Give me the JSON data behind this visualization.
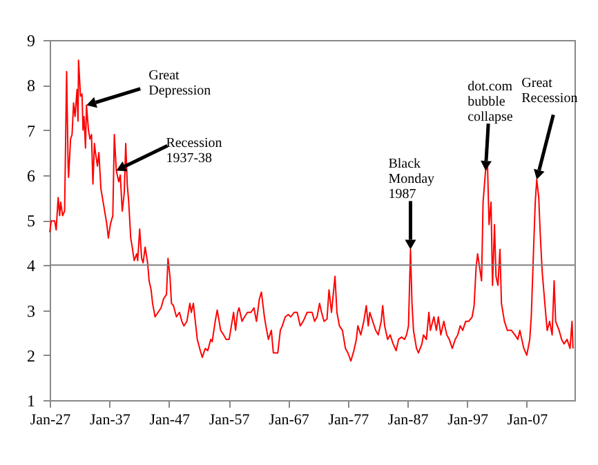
{
  "chart_data": {
    "type": "line",
    "xlim": [
      "1927-01",
      "2015-01"
    ],
    "ylim": [
      1,
      9
    ],
    "xticks": [
      {
        "value": "1927-01",
        "label": "Jan-27"
      },
      {
        "value": "1937-01",
        "label": "Jan-37"
      },
      {
        "value": "1947-01",
        "label": "Jan-47"
      },
      {
        "value": "1957-01",
        "label": "Jan-57"
      },
      {
        "value": "1967-01",
        "label": "Jan-67"
      },
      {
        "value": "1977-01",
        "label": "Jan-77"
      },
      {
        "value": "1987-01",
        "label": "Jan-87"
      },
      {
        "value": "1997-01",
        "label": "Jan-97"
      },
      {
        "value": "2007-01",
        "label": "Jan-07"
      }
    ],
    "yticks": [
      1,
      2,
      3,
      4,
      5,
      6,
      7,
      8,
      9
    ],
    "grid": false,
    "ref_lines": [
      {
        "axis": "y",
        "value": 4,
        "color": "#808080"
      }
    ],
    "annotations": [
      {
        "text": "Great Depression",
        "x": "1933-03",
        "y": 7.55
      },
      {
        "text": "Recession 1937-38",
        "x": "1938-03",
        "y": 6.1
      },
      {
        "text": "Black Monday 1987",
        "x": "1987-07",
        "y": 4.35
      },
      {
        "text": "dot.com bubble collapse",
        "x": "2000-02",
        "y": 6.1
      },
      {
        "text": "Great Recession",
        "x": "2008-09",
        "y": 5.9
      }
    ],
    "series": [
      {
        "color": "#ff0000",
        "x": [
          "1927-01",
          "1927-04",
          "1927-11",
          "1928-02",
          "1928-06",
          "1928-09",
          "1928-11",
          "1929-03",
          "1929-07",
          "1929-11",
          "1930-02",
          "1930-03",
          "1930-07",
          "1930-10",
          "1931-01",
          "1931-04",
          "1931-08",
          "1931-10",
          "1931-11",
          "1932-03",
          "1932-06",
          "1932-08",
          "1932-10",
          "1933-01",
          "1933-03",
          "1933-07",
          "1933-10",
          "1934-01",
          "1934-04",
          "1934-07",
          "1934-09",
          "1935-01",
          "1935-04",
          "1935-08",
          "1936-02",
          "1936-08",
          "1936-11",
          "1937-03",
          "1937-08",
          "1937-11",
          "1938-03",
          "1938-08",
          "1938-11",
          "1939-03",
          "1939-07",
          "1939-10",
          "1940-01",
          "1940-04",
          "1940-08",
          "1940-11",
          "1941-03",
          "1941-08",
          "1941-10",
          "1942-02",
          "1942-06",
          "1942-09",
          "1943-01",
          "1943-06",
          "1943-09",
          "1944-01",
          "1944-04",
          "1944-09",
          "1945-03",
          "1945-09",
          "1946-02",
          "1946-08",
          "1946-11",
          "1947-03",
          "1947-06",
          "1947-10",
          "1948-04",
          "1948-10",
          "1949-03",
          "1949-07",
          "1950-01",
          "1950-07",
          "1950-10",
          "1951-02",
          "1951-06",
          "1951-10",
          "1952-04",
          "1952-08",
          "1953-02",
          "1953-07",
          "1954-01",
          "1954-04",
          "1954-10",
          "1955-02",
          "1955-06",
          "1955-09",
          "1956-03",
          "1956-08",
          "1957-02",
          "1957-08",
          "1957-11",
          "1958-03",
          "1958-07",
          "1958-10",
          "1959-04",
          "1959-09",
          "1960-03",
          "1960-10",
          "1961-04",
          "1961-09",
          "1962-03",
          "1962-07",
          "1963-01",
          "1963-04",
          "1963-09",
          "1964-03",
          "1964-07",
          "1965-04",
          "1965-09",
          "1966-01",
          "1966-07",
          "1967-01",
          "1967-06",
          "1968-01",
          "1968-07",
          "1969-01",
          "1969-07",
          "1969-11",
          "1970-03",
          "1971-01",
          "1971-06",
          "1971-11",
          "1972-04",
          "1972-08",
          "1973-01",
          "1973-07",
          "1973-11",
          "1974-04",
          "1974-08",
          "1974-11",
          "1975-03",
          "1975-08",
          "1976-02",
          "1976-08",
          "1977-01",
          "1977-07",
          "1978-01",
          "1978-06",
          "1978-09",
          "1979-03",
          "1979-09",
          "1980-02",
          "1980-06",
          "1980-09",
          "1981-03",
          "1981-09",
          "1982-02",
          "1982-08",
          "1982-11",
          "1983-03",
          "1983-09",
          "1984-02",
          "1984-08",
          "1985-02",
          "1985-07",
          "1986-01",
          "1986-07",
          "1986-11",
          "1987-03",
          "1987-07",
          "1987-10",
          "1988-01",
          "1988-07",
          "1988-11",
          "1989-06",
          "1989-09",
          "1990-03",
          "1990-08",
          "1990-11",
          "1991-06",
          "1991-11",
          "1992-03",
          "1992-08",
          "1993-02",
          "1993-08",
          "1994-01",
          "1994-07",
          "1995-01",
          "1995-06",
          "1995-11",
          "1996-04",
          "1996-10",
          "1997-04",
          "1997-11",
          "1998-03",
          "1998-07",
          "1998-10",
          "1999-02",
          "1999-06",
          "1999-09",
          "2000-02",
          "2000-06",
          "2000-09",
          "2001-01",
          "2001-04",
          "2001-08",
          "2001-11",
          "2002-03",
          "2002-07",
          "2002-10",
          "2003-04",
          "2003-10",
          "2004-06",
          "2005-01",
          "2005-07",
          "2005-11",
          "2006-03",
          "2006-07",
          "2007-01",
          "2007-07",
          "2007-10",
          "2008-02",
          "2008-06",
          "2008-09",
          "2009-01",
          "2009-04",
          "2009-08",
          "2010-02",
          "2010-06",
          "2010-11",
          "2011-04",
          "2011-08",
          "2011-11",
          "2012-06",
          "2012-11",
          "2013-04",
          "2013-10",
          "2014-04",
          "2014-08",
          "2014-10"
        ],
        "values": [
          4.73,
          4.98,
          4.98,
          4.78,
          5.5,
          5.1,
          5.4,
          5.1,
          5.2,
          8.3,
          6.2,
          5.95,
          6.8,
          6.9,
          7.6,
          7.3,
          7.9,
          7.2,
          8.55,
          7.75,
          7.8,
          7.0,
          7.3,
          6.6,
          7.55,
          7.0,
          6.8,
          6.9,
          5.8,
          6.7,
          6.5,
          6.2,
          6.5,
          5.7,
          5.3,
          4.9,
          4.6,
          4.9,
          5.1,
          6.9,
          6.1,
          5.85,
          6.0,
          5.2,
          5.6,
          6.7,
          5.8,
          5.4,
          4.6,
          4.4,
          4.1,
          4.25,
          4.1,
          4.8,
          4.15,
          4.05,
          4.4,
          4.05,
          3.65,
          3.45,
          3.15,
          2.85,
          2.95,
          3.05,
          3.25,
          3.35,
          4.15,
          3.75,
          3.15,
          3.1,
          2.85,
          2.95,
          2.75,
          2.65,
          2.75,
          3.15,
          2.95,
          3.15,
          2.75,
          2.35,
          2.1,
          1.95,
          2.15,
          2.1,
          2.35,
          2.3,
          2.75,
          3.0,
          2.75,
          2.55,
          2.45,
          2.35,
          2.35,
          2.75,
          2.95,
          2.55,
          2.95,
          3.05,
          2.75,
          2.85,
          2.95,
          2.95,
          3.05,
          2.75,
          3.25,
          3.4,
          2.85,
          2.65,
          2.35,
          2.55,
          2.05,
          2.05,
          2.55,
          2.65,
          2.85,
          2.9,
          2.85,
          2.95,
          2.95,
          2.65,
          2.75,
          2.85,
          2.95,
          2.95,
          2.75,
          2.85,
          3.15,
          2.95,
          2.75,
          2.8,
          3.45,
          2.95,
          3.4,
          3.75,
          2.95,
          2.65,
          2.55,
          2.15,
          2.05,
          1.87,
          2.1,
          2.35,
          2.65,
          2.45,
          2.75,
          3.1,
          2.65,
          2.95,
          2.75,
          2.55,
          2.45,
          2.75,
          3.1,
          2.65,
          2.35,
          2.45,
          2.25,
          2.1,
          2.35,
          2.4,
          2.35,
          2.45,
          2.65,
          4.35,
          3.15,
          2.55,
          2.15,
          2.05,
          2.25,
          2.45,
          2.35,
          2.95,
          2.55,
          2.85,
          2.55,
          2.85,
          2.45,
          2.75,
          2.45,
          2.35,
          2.15,
          2.35,
          2.45,
          2.65,
          2.55,
          2.75,
          2.75,
          2.85,
          3.1,
          3.95,
          4.25,
          3.95,
          3.65,
          5.4,
          6.1,
          6.2,
          4.9,
          5.4,
          3.55,
          4.9,
          3.75,
          3.55,
          4.35,
          3.15,
          2.75,
          2.55,
          2.55,
          2.45,
          2.35,
          2.55,
          2.35,
          2.15,
          2.0,
          2.35,
          2.85,
          4.15,
          5.4,
          5.9,
          5.5,
          4.7,
          3.85,
          3.05,
          2.55,
          2.75,
          2.45,
          3.65,
          2.75,
          2.55,
          2.35,
          2.25,
          2.35,
          2.15,
          2.75,
          2.15
        ]
      }
    ]
  }
}
